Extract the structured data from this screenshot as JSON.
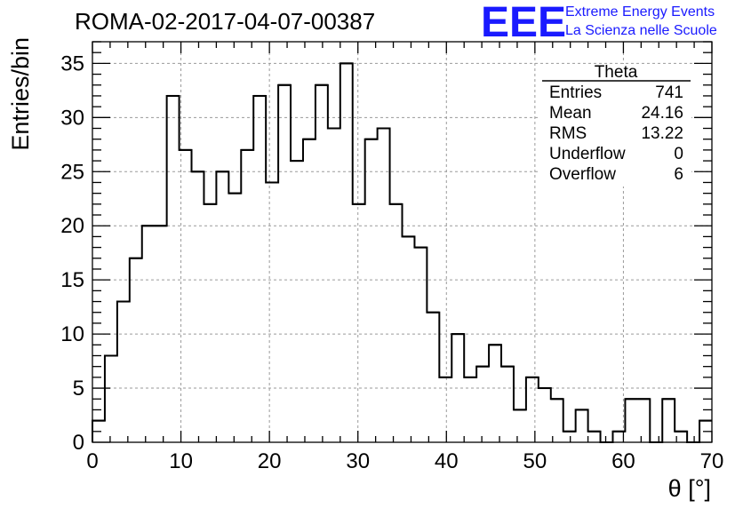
{
  "logo": {
    "mark": "EEE",
    "line1": "Extreme Energy Events",
    "line2": "La Scienza nelle Scuole",
    "color": "#1a1aff"
  },
  "stats_box": {
    "title": "Theta",
    "rows": [
      {
        "label": "Entries",
        "value": "741"
      },
      {
        "label": "Mean",
        "value": "24.16"
      },
      {
        "label": "RMS",
        "value": "13.22"
      },
      {
        "label": "Underflow",
        "value": "0"
      },
      {
        "label": "Overflow",
        "value": "6"
      }
    ]
  },
  "chart_data": {
    "type": "histogram",
    "title": "ROMA-02-2017-04-07-00387",
    "xlabel": "θ [°]",
    "ylabel": "Entries/bin",
    "xlim": [
      0,
      70
    ],
    "ylim": [
      0,
      37
    ],
    "bin_width": 1.4,
    "bin_edges_start": 0,
    "values": [
      2,
      8,
      13,
      17,
      20,
      20,
      32,
      27,
      25,
      22,
      25,
      23,
      27,
      32,
      24,
      33,
      26,
      28,
      33,
      29,
      35,
      22,
      28,
      29,
      22,
      19,
      18,
      12,
      6,
      10,
      6,
      7,
      9,
      7,
      3,
      6,
      5,
      4,
      1,
      3,
      1,
      0,
      1,
      4,
      4,
      0,
      4,
      1,
      0,
      2
    ],
    "x_ticks": [
      0,
      10,
      20,
      30,
      40,
      50,
      60,
      70
    ],
    "y_ticks": [
      0,
      5,
      10,
      15,
      20,
      25,
      30,
      35
    ],
    "grid": true,
    "line_color": "#000000",
    "grid_color": "#9a9a9a"
  }
}
